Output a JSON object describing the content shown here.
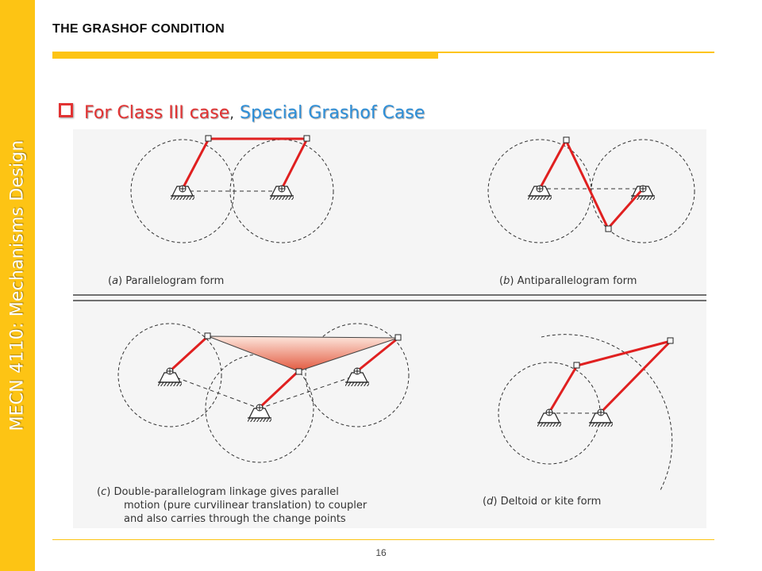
{
  "sidebar": {
    "text": "MECN 4110: Mechanisms Design"
  },
  "slide": {
    "title": "THE GRASHOF CONDITION",
    "heading": {
      "part1": "For Class III case",
      "separator": ",",
      "part2": "Special Grashof Case"
    },
    "page_number": "16"
  },
  "figure": {
    "captions": {
      "a_letter": "a",
      "a_text": "Parallelogram form",
      "b_letter": "b",
      "b_text": "Antiparallelogram form",
      "c_letter": "c",
      "c_line1": "Double-parallelogram linkage gives parallel",
      "c_line2": "motion (pure curvilinear translation) to coupler",
      "c_line3": "and also carries through the change points",
      "d_letter": "d",
      "d_text": "Deltoid or kite form"
    }
  },
  "colors": {
    "accent": "#FDC414",
    "heading_red": "#E23333",
    "heading_blue": "#2E8FD8",
    "link_red": "#E02020"
  }
}
